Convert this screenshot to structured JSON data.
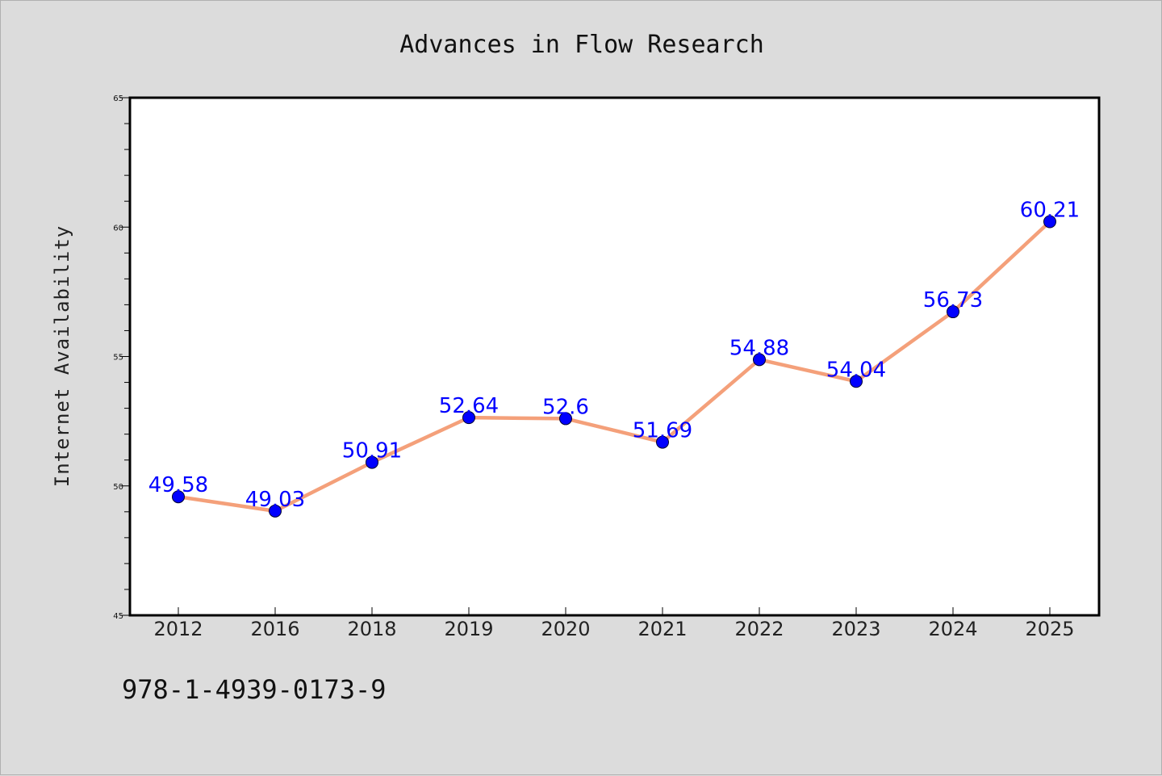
{
  "chart_data": {
    "type": "line",
    "title": "Advances in Flow Research",
    "xlabel": "",
    "ylabel": "Internet Availability",
    "categories": [
      "2012",
      "2016",
      "2018",
      "2019",
      "2020",
      "2021",
      "2022",
      "2023",
      "2024",
      "2025"
    ],
    "series": [
      {
        "values": [
          49.58,
          49.03,
          50.91,
          52.64,
          52.6,
          51.69,
          54.88,
          54.04,
          56.73,
          60.21
        ],
        "data_labels": [
          "49.58",
          "49.03",
          "50.91",
          "52.64",
          "52.6",
          "51.69",
          "54.88",
          "54.04",
          "56.73",
          "60.21"
        ]
      }
    ],
    "ylim": [
      45,
      65
    ],
    "yticks": [
      "45",
      "50",
      "55",
      "60",
      "65"
    ],
    "grid": false,
    "legend": "none",
    "colors": {
      "line": "#f4a07a",
      "marker": "#0000ff",
      "data_label": "#0000ff",
      "background": "#dcdcdc",
      "plot_area": "#ffffff"
    }
  },
  "footnote": "978-1-4939-0173-9"
}
